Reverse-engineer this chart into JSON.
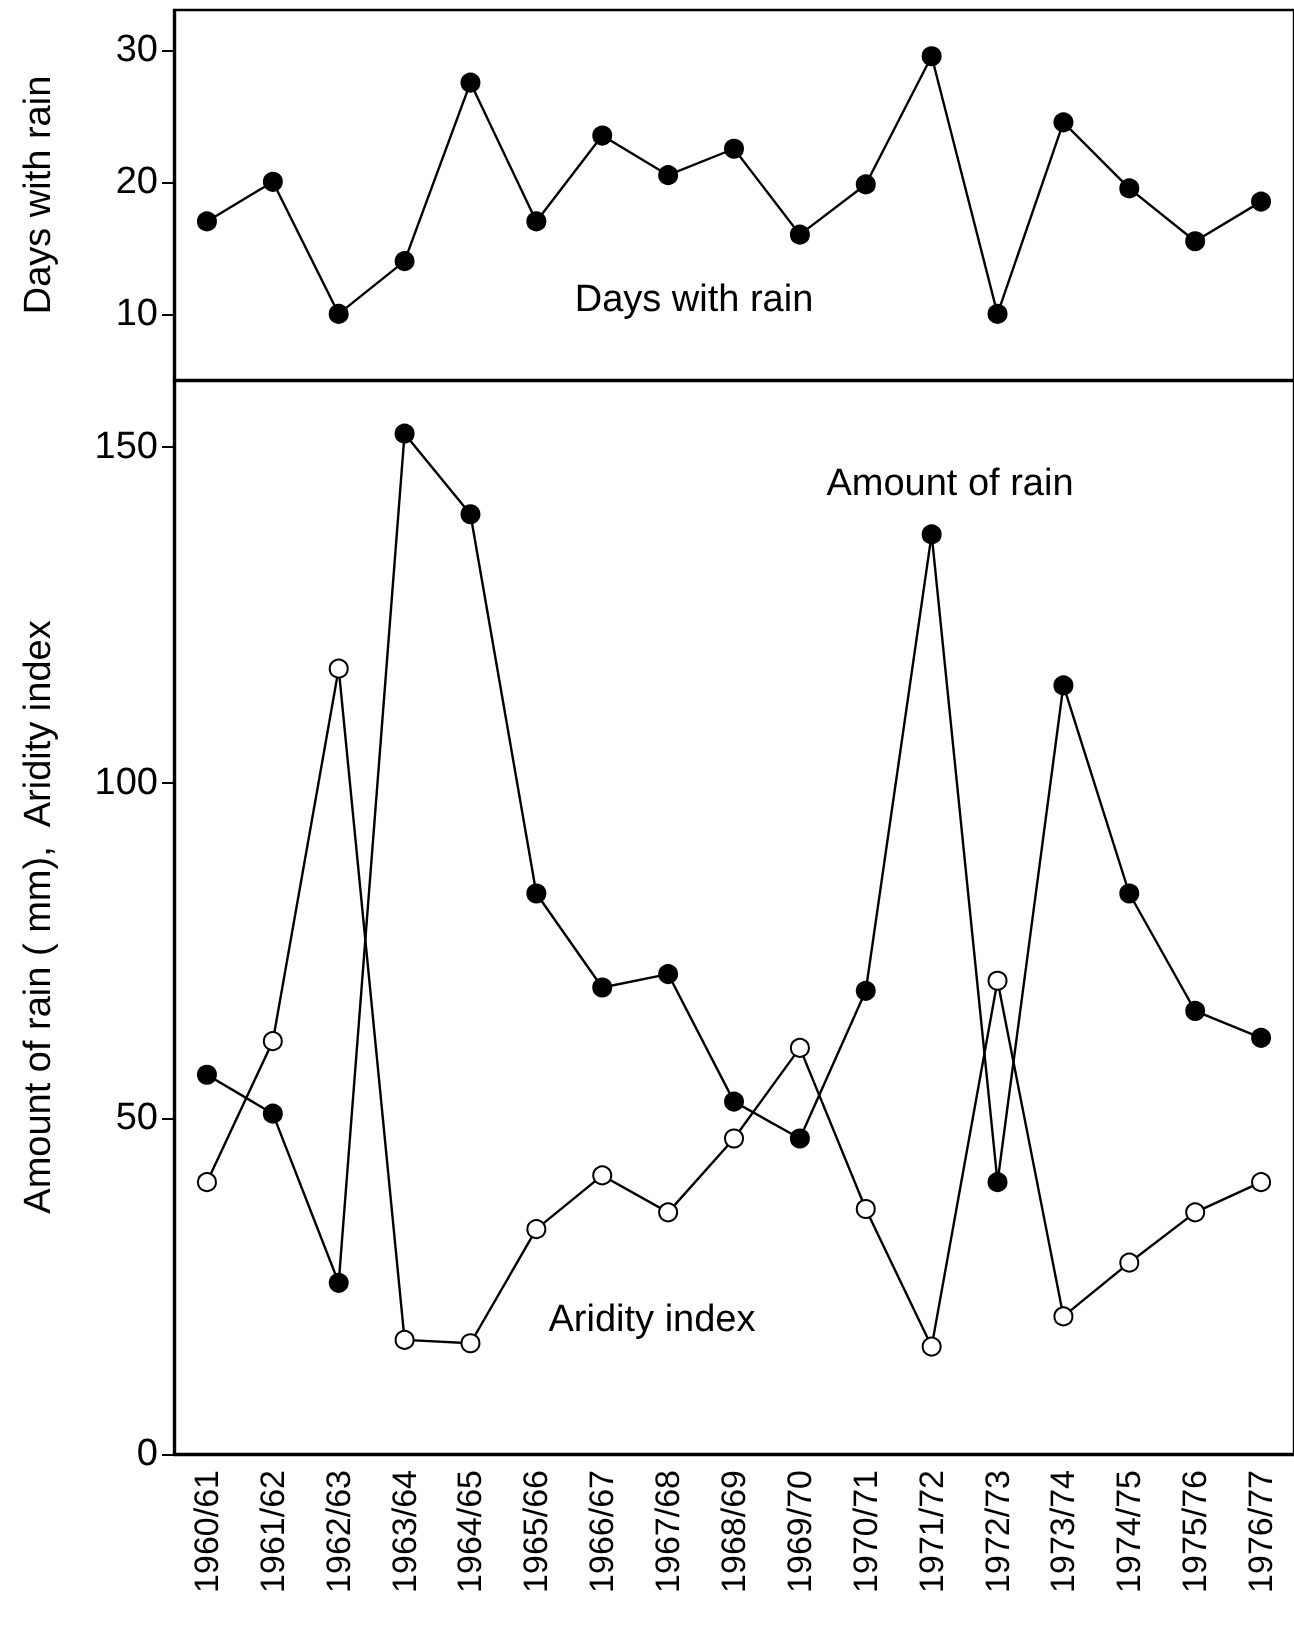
{
  "chart_data": [
    {
      "type": "line",
      "ylabel": "Days with rain",
      "categories": [
        "1960/61",
        "1961/62",
        "1962/63",
        "1963/64",
        "1964/65",
        "1965/66",
        "1966/67",
        "1967/68",
        "1968/69",
        "1969/70",
        "1970/71",
        "1971/72",
        "1972/73",
        "1973/74",
        "1974/75",
        "1975/76",
        "1976/77"
      ],
      "series": [
        {
          "name": "Days with rain",
          "color": "#000000",
          "values": [
            17,
            20,
            10,
            14,
            27.5,
            17,
            23.5,
            20.5,
            22.5,
            16,
            19.8,
            29.5,
            10,
            24.5,
            19.5,
            15.5,
            18.5
          ]
        }
      ],
      "ylim": [
        5,
        33
      ],
      "yticks": [
        10,
        20,
        30
      ],
      "tick_labels": "y",
      "marker": "circle"
    },
    {
      "type": "line",
      "ylabel": "Amount of rain ( mm),  Aridity index",
      "categories": [
        "1960/61",
        "1961/62",
        "1962/63",
        "1963/64",
        "1964/65",
        "1965/66",
        "1966/67",
        "1967/68",
        "1968/69",
        "1969/70",
        "1970/71",
        "1971/72",
        "1972/73",
        "1973/74",
        "1974/75",
        "1975/76",
        "1976/77"
      ],
      "series": [
        {
          "name": "Amount of rain",
          "color": "#000000",
          "values": [
            56.5,
            50.7,
            25.5,
            152,
            140,
            83.5,
            69.5,
            71.5,
            52.5,
            47,
            69,
            137,
            40.5,
            114.5,
            83.5,
            66,
            62
          ]
        },
        {
          "name": "Aridity index",
          "color": "#ffffff",
          "values": [
            40.5,
            61.5,
            117,
            17,
            16.5,
            33.5,
            41.5,
            36,
            47,
            60.5,
            36.5,
            16,
            70.5,
            20.5,
            28.5,
            36,
            40.5
          ]
        }
      ],
      "ylim": [
        0,
        160
      ],
      "yticks": [
        0,
        50,
        100,
        150
      ],
      "marker": "circle"
    }
  ]
}
